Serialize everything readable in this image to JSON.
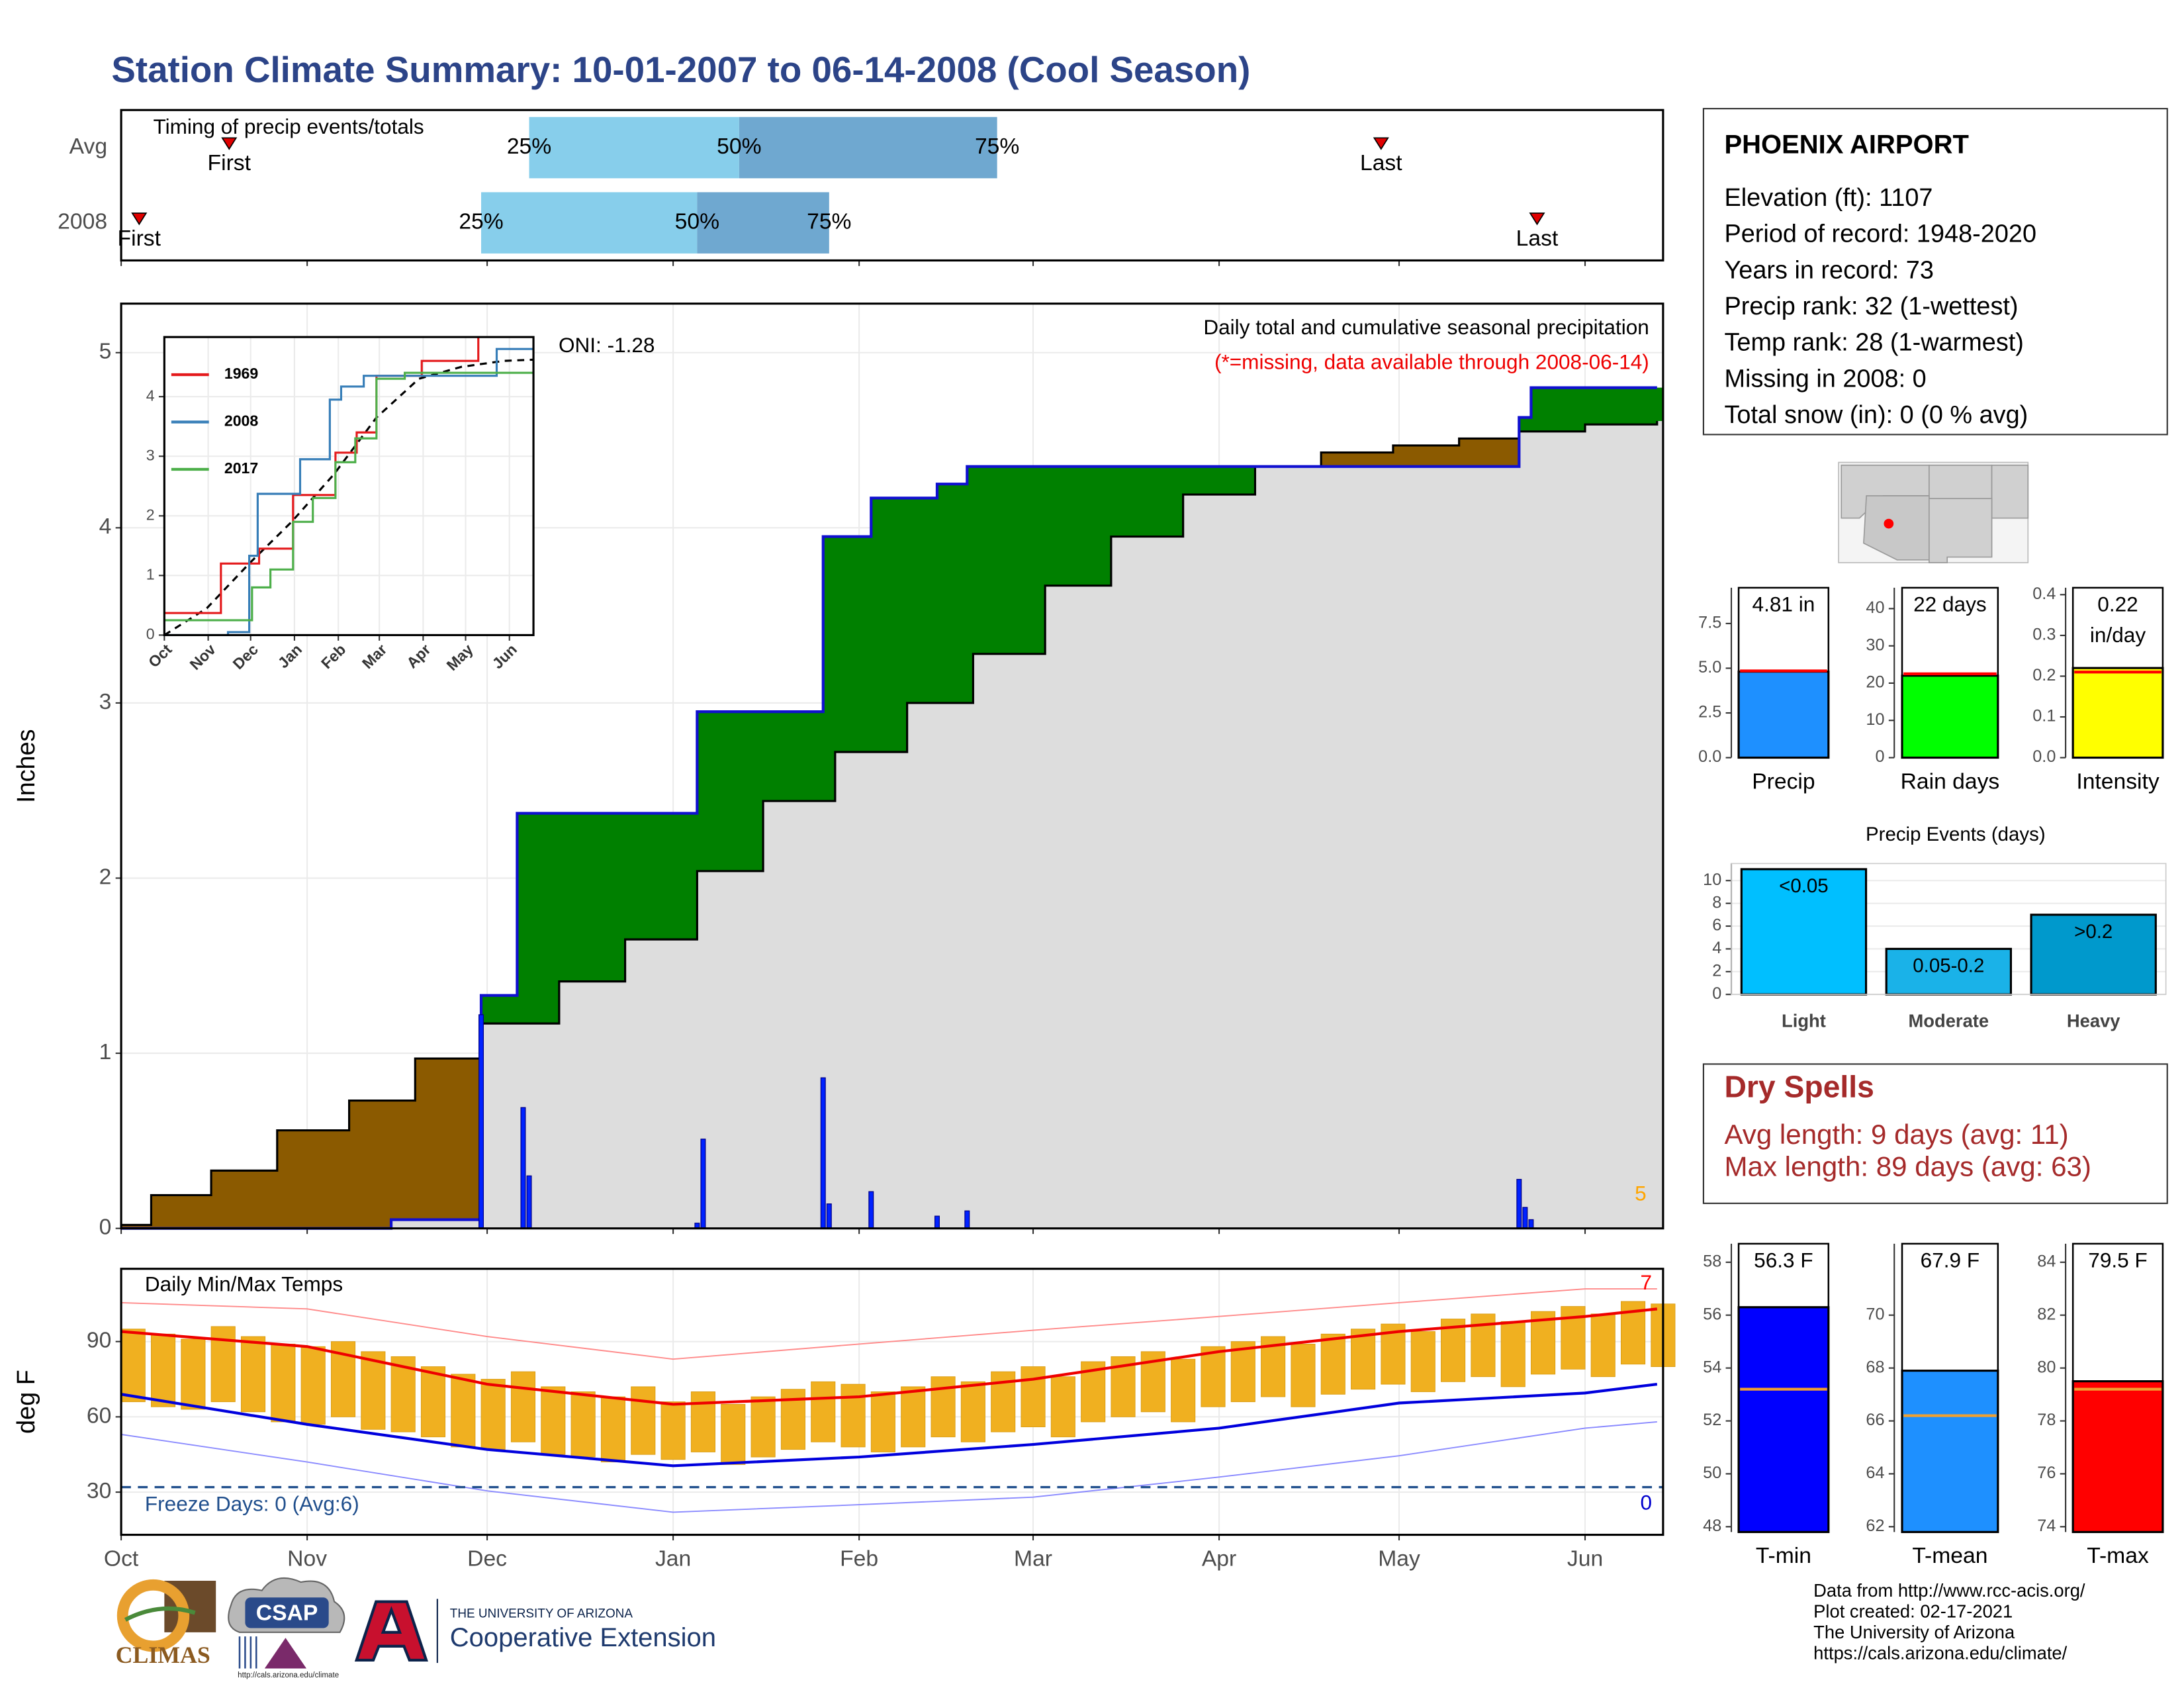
{
  "title": "Station Climate Summary: 10-01-2007 to 06-14-2008 (Cool Season)",
  "station": {
    "name": "PHOENIX AIRPORT",
    "lines": [
      "Elevation (ft): 1107",
      "Period of record: 1948-2020",
      "Years in record: 73",
      "Precip rank: 32 (1-wettest)",
      "Temp rank: 28 (1-warmest)",
      "Missing in 2008: 0",
      "Total snow (in): 0 (0 % avg)"
    ]
  },
  "dry_spells": {
    "title": "Dry Spells",
    "lines": [
      "Avg length: 9 days (avg: 11)",
      "Max length: 89 days (avg: 63)"
    ]
  },
  "footer": [
    "Data from http://www.rcc-acis.org/",
    "Plot created: 02-17-2021",
    "The University of Arizona",
    "https://cals.arizona.edu/climate/"
  ],
  "logos": {
    "climas": "CLIMAS",
    "csap": "CSAP",
    "csap_url": "http://cals.arizona.edu/climate",
    "university": "THE UNIVERSITY OF ARIZONA",
    "extension": "Cooperative Extension"
  },
  "chart_data": [
    {
      "type": "timeline",
      "title": "Timing of precip events/totals",
      "categories": [
        "Avg",
        "2008"
      ],
      "xlim": [
        0,
        257
      ],
      "xticks": [
        0,
        31,
        61,
        92,
        123,
        152,
        183,
        213,
        244
      ],
      "series": [
        {
          "name": "First",
          "color": "#e00000",
          "values": [
            18,
            3
          ]
        },
        {
          "name": "25%",
          "color": "#87ceeb",
          "values": [
            68,
            60
          ]
        },
        {
          "name": "50%",
          "color": "#6fa8d0",
          "values": [
            103,
            96
          ]
        },
        {
          "name": "75%",
          "values": [
            146,
            118
          ]
        },
        {
          "name": "Last",
          "color": "#e00000",
          "values": [
            210,
            236
          ]
        }
      ]
    },
    {
      "type": "area",
      "title": "Daily total and cumulative seasonal precipitation",
      "subtitle": "(*=missing, data available through 2008-06-14)",
      "subtitle_color": "#ee0000",
      "annotations": [
        {
          "text": "ONI: -1.28",
          "color": "#000000"
        },
        {
          "text": "5",
          "color": "#ffa500"
        }
      ],
      "y_label": "Inches",
      "xlim": [
        0,
        257
      ],
      "xticks": [
        0,
        31,
        61,
        92,
        123,
        152,
        183,
        213,
        244
      ],
      "ylim": [
        0,
        5.28
      ],
      "yticks": [
        0,
        1,
        2,
        3,
        4,
        5
      ],
      "grid": true,
      "step": true,
      "average": {
        "x": [
          0,
          5,
          15,
          26,
          38,
          49,
          60,
          73,
          84,
          96,
          107,
          119,
          131,
          142,
          154,
          165,
          177,
          189,
          200,
          212,
          223,
          233,
          244,
          256
        ],
        "values": [
          0.02,
          0.19,
          0.33,
          0.56,
          0.73,
          0.97,
          1.17,
          1.41,
          1.65,
          2.04,
          2.44,
          2.72,
          3.0,
          3.28,
          3.67,
          3.95,
          4.19,
          4.35,
          4.43,
          4.47,
          4.51,
          4.55,
          4.59,
          4.61
        ],
        "color": "#dddddd",
        "line_color": "#000000"
      },
      "cumulative": {
        "x": [
          0,
          45,
          60,
          66,
          96,
          117,
          125,
          136,
          141,
          233,
          235,
          256
        ],
        "values": [
          0,
          0.05,
          1.33,
          2.37,
          2.95,
          3.95,
          4.17,
          4.25,
          4.35,
          4.63,
          4.8,
          4.8
        ],
        "color": "#1010d0"
      },
      "daily": {
        "x": [
          60,
          67,
          68,
          96,
          97,
          117,
          118,
          125,
          136,
          141,
          233,
          234,
          235
        ],
        "values": [
          1.22,
          0.69,
          0.3,
          0.03,
          0.51,
          0.86,
          0.14,
          0.21,
          0.07,
          0.1,
          0.28,
          0.12,
          0.05
        ],
        "color": "#0022ff"
      },
      "above_color": "#008000",
      "below_color": "#8b5a00"
    },
    {
      "type": "line",
      "xlim": [
        0,
        261
      ],
      "xticks": [
        {
          "value": 0,
          "label": "Oct"
        },
        {
          "value": 31,
          "label": "Nov"
        },
        {
          "value": 61,
          "label": "Dec"
        },
        {
          "value": 92,
          "label": "Jan"
        },
        {
          "value": 123,
          "label": "Feb"
        },
        {
          "value": 152,
          "label": "Mar"
        },
        {
          "value": 183,
          "label": "Apr"
        },
        {
          "value": 213,
          "label": "May"
        },
        {
          "value": 244,
          "label": "Jun"
        }
      ],
      "ylim": [
        0,
        5.0
      ],
      "yticks": [
        0,
        1,
        2,
        3,
        4
      ],
      "grid": true,
      "step": true,
      "series": [
        {
          "name": "1969",
          "color": "#e41a1c",
          "x": [
            0,
            32,
            40,
            62,
            67,
            91,
            121,
            136,
            150,
            182,
            217,
            222
          ],
          "values": [
            0.37,
            0.37,
            1.2,
            1.2,
            1.45,
            2.35,
            3.06,
            3.4,
            4.35,
            4.6,
            4.6,
            5.0
          ]
        },
        {
          "name": "2008",
          "color": "#377eb8",
          "x": [
            0,
            45,
            60,
            66,
            96,
            117,
            125,
            141,
            235,
            261
          ],
          "values": [
            0,
            0.05,
            1.33,
            2.37,
            2.95,
            3.95,
            4.17,
            4.35,
            4.8,
            4.8
          ]
        },
        {
          "name": "2017",
          "color": "#4daf4a",
          "x": [
            0,
            50,
            62,
            75,
            91,
            105,
            121,
            135,
            150,
            170,
            261
          ],
          "values": [
            0.25,
            0.25,
            0.8,
            1.1,
            1.9,
            2.3,
            2.9,
            3.3,
            4.3,
            4.4,
            4.4
          ]
        }
      ],
      "average_line": {
        "x": [
          0,
          30,
          60,
          90,
          120,
          150,
          180,
          210,
          240,
          261
        ],
        "values": [
          0,
          0.45,
          1.2,
          1.9,
          2.7,
          3.65,
          4.3,
          4.5,
          4.6,
          4.62
        ],
        "color": "#000000",
        "dashed": true
      }
    },
    {
      "type": "range",
      "title": "Daily Min/Max Temps",
      "y_label": "deg F",
      "annotations": [
        {
          "text": "Freeze Days: 0 (Avg:6)",
          "color": "#1f4e8c"
        },
        {
          "text": "0",
          "color": "#0000cd"
        },
        {
          "text": "7",
          "color": "#ff0000"
        }
      ],
      "xlim": [
        0,
        257
      ],
      "xticks": [
        {
          "value": 0,
          "label": "Oct"
        },
        {
          "value": 31,
          "label": "Nov"
        },
        {
          "value": 61,
          "label": "Dec"
        },
        {
          "value": 92,
          "label": "Jan"
        },
        {
          "value": 123,
          "label": "Feb"
        },
        {
          "value": 152,
          "label": "Mar"
        },
        {
          "value": 183,
          "label": "Apr"
        },
        {
          "value": 213,
          "label": "May"
        },
        {
          "value": 244,
          "label": "Jun"
        }
      ],
      "ylim": [
        13,
        119
      ],
      "yticks": [
        30,
        60,
        90
      ],
      "grid": true,
      "freeze_line": 32,
      "freeze_color": "#1f4e8c",
      "daily": {
        "x": [
          0,
          5,
          10,
          15,
          20,
          25,
          30,
          35,
          40,
          45,
          50,
          55,
          60,
          65,
          70,
          75,
          80,
          85,
          90,
          95,
          100,
          105,
          110,
          115,
          120,
          125,
          130,
          135,
          140,
          145,
          150,
          155,
          160,
          165,
          170,
          175,
          180,
          185,
          190,
          195,
          200,
          205,
          210,
          215,
          220,
          225,
          230,
          235,
          240,
          245,
          250,
          255
        ],
        "max": [
          95,
          93,
          91,
          96,
          92,
          89,
          88,
          90,
          86,
          84,
          80,
          77,
          75,
          78,
          72,
          70,
          68,
          72,
          66,
          70,
          65,
          68,
          71,
          74,
          73,
          70,
          72,
          76,
          74,
          78,
          80,
          76,
          82,
          84,
          86,
          83,
          88,
          90,
          92,
          89,
          93,
          95,
          97,
          94,
          99,
          101,
          98,
          102,
          104,
          101,
          106,
          105
        ],
        "min": [
          66,
          64,
          63,
          66,
          62,
          58,
          57,
          60,
          55,
          54,
          52,
          48,
          47,
          50,
          45,
          44,
          42,
          45,
          43,
          46,
          41,
          44,
          47,
          50,
          48,
          46,
          48,
          52,
          50,
          54,
          56,
          52,
          58,
          60,
          62,
          58,
          64,
          66,
          68,
          64,
          69,
          71,
          73,
          70,
          74,
          76,
          72,
          77,
          79,
          76,
          81,
          80
        ],
        "color": "#f0b020"
      },
      "normal_max": {
        "x": [
          0,
          31,
          61,
          92,
          123,
          152,
          183,
          213,
          244,
          256
        ],
        "values": [
          94,
          88,
          73,
          65,
          68,
          75,
          86,
          94,
          100,
          103
        ],
        "color": "#ee0000"
      },
      "normal_min": {
        "x": [
          0,
          31,
          61,
          92,
          123,
          152,
          183,
          213,
          244,
          256
        ],
        "values": [
          69,
          57,
          47,
          40.5,
          44,
          49,
          55.5,
          65.5,
          69.5,
          73
        ],
        "color": "#0000dd"
      },
      "record_max": {
        "x": [
          0,
          31,
          61,
          92,
          123,
          152,
          183,
          213,
          244,
          256
        ],
        "values": [
          105.5,
          103,
          92,
          83,
          89,
          94.5,
          100,
          105.5,
          111,
          111
        ],
        "color": "#ff8a8a"
      },
      "record_min": {
        "x": [
          0,
          31,
          61,
          92,
          123,
          152,
          183,
          213,
          244,
          256
        ],
        "values": [
          53,
          42,
          30.5,
          22,
          25,
          28,
          36,
          44.5,
          55.5,
          58
        ],
        "color": "#8a8aff"
      }
    },
    {
      "type": "bar",
      "categories": [
        "Precip"
      ],
      "values": [
        4.81
      ],
      "value_labels": [
        "4.81 in"
      ],
      "reference": [
        4.85
      ],
      "reference_color": "#ff0000",
      "color": "#1e90ff",
      "ylim": [
        0,
        9.5
      ],
      "yticks": [
        {
          "value": 0,
          "label": "0.0"
        },
        2.5,
        {
          "value": 5,
          "label": "5.0"
        },
        7.5
      ]
    },
    {
      "type": "bar",
      "categories": [
        "Rain days"
      ],
      "values": [
        22
      ],
      "value_labels": [
        "22 days"
      ],
      "reference": [
        22.5
      ],
      "reference_color": "#ff0000",
      "color": "#00ff00",
      "ylim": [
        0,
        45.6
      ],
      "yticks": [
        0,
        10,
        20,
        30,
        40
      ]
    },
    {
      "type": "bar",
      "categories": [
        "Intensity"
      ],
      "values": [
        0.22
      ],
      "value_labels": [
        "0.22 in/day"
      ],
      "reference": [
        0.21
      ],
      "reference_color": "#ff0000",
      "color": "#ffff00",
      "ylim": [
        0,
        0.417
      ],
      "yticks": [
        {
          "value": 0,
          "label": "0.0"
        },
        0.1,
        0.2,
        0.3,
        0.4
      ]
    },
    {
      "type": "bar",
      "title": "Precip Events (days)",
      "categories": [
        "Light",
        "Moderate",
        "Heavy"
      ],
      "values": [
        11,
        4,
        7
      ],
      "thresholds": [
        "<0.05",
        "0.05-0.2",
        ">0.2"
      ],
      "colors": [
        "#00bfff",
        "#1ab2e8",
        "#0099cc"
      ],
      "ylim": [
        0,
        11.5
      ],
      "yticks": [
        0,
        2,
        4,
        6,
        8,
        10
      ],
      "grid": true
    },
    {
      "type": "bar",
      "categories": [
        "T-min"
      ],
      "values": [
        56.3
      ],
      "value_labels": [
        "56.3 F"
      ],
      "reference": [
        53.2
      ],
      "reference_color": "#f0a030",
      "color": "#0000ff",
      "ylim": [
        47.8,
        58.7
      ],
      "yticks": [
        48,
        50,
        52,
        54,
        56,
        58
      ]
    },
    {
      "type": "bar",
      "categories": [
        "T-mean"
      ],
      "values": [
        67.9
      ],
      "value_labels": [
        "67.9 F"
      ],
      "reference": [
        66.2
      ],
      "reference_color": "#f0a030",
      "color": "#1e90ff",
      "ylim": [
        61.8,
        72.7
      ],
      "yticks": [
        62,
        64,
        66,
        68,
        70
      ]
    },
    {
      "type": "bar",
      "categories": [
        "T-max"
      ],
      "values": [
        79.5
      ],
      "value_labels": [
        "79.5 F"
      ],
      "reference": [
        79.2
      ],
      "reference_color": "#f0a030",
      "color": "#ff0000",
      "ylim": [
        73.8,
        84.7
      ],
      "yticks": [
        74,
        76,
        78,
        80,
        82,
        84
      ]
    }
  ]
}
